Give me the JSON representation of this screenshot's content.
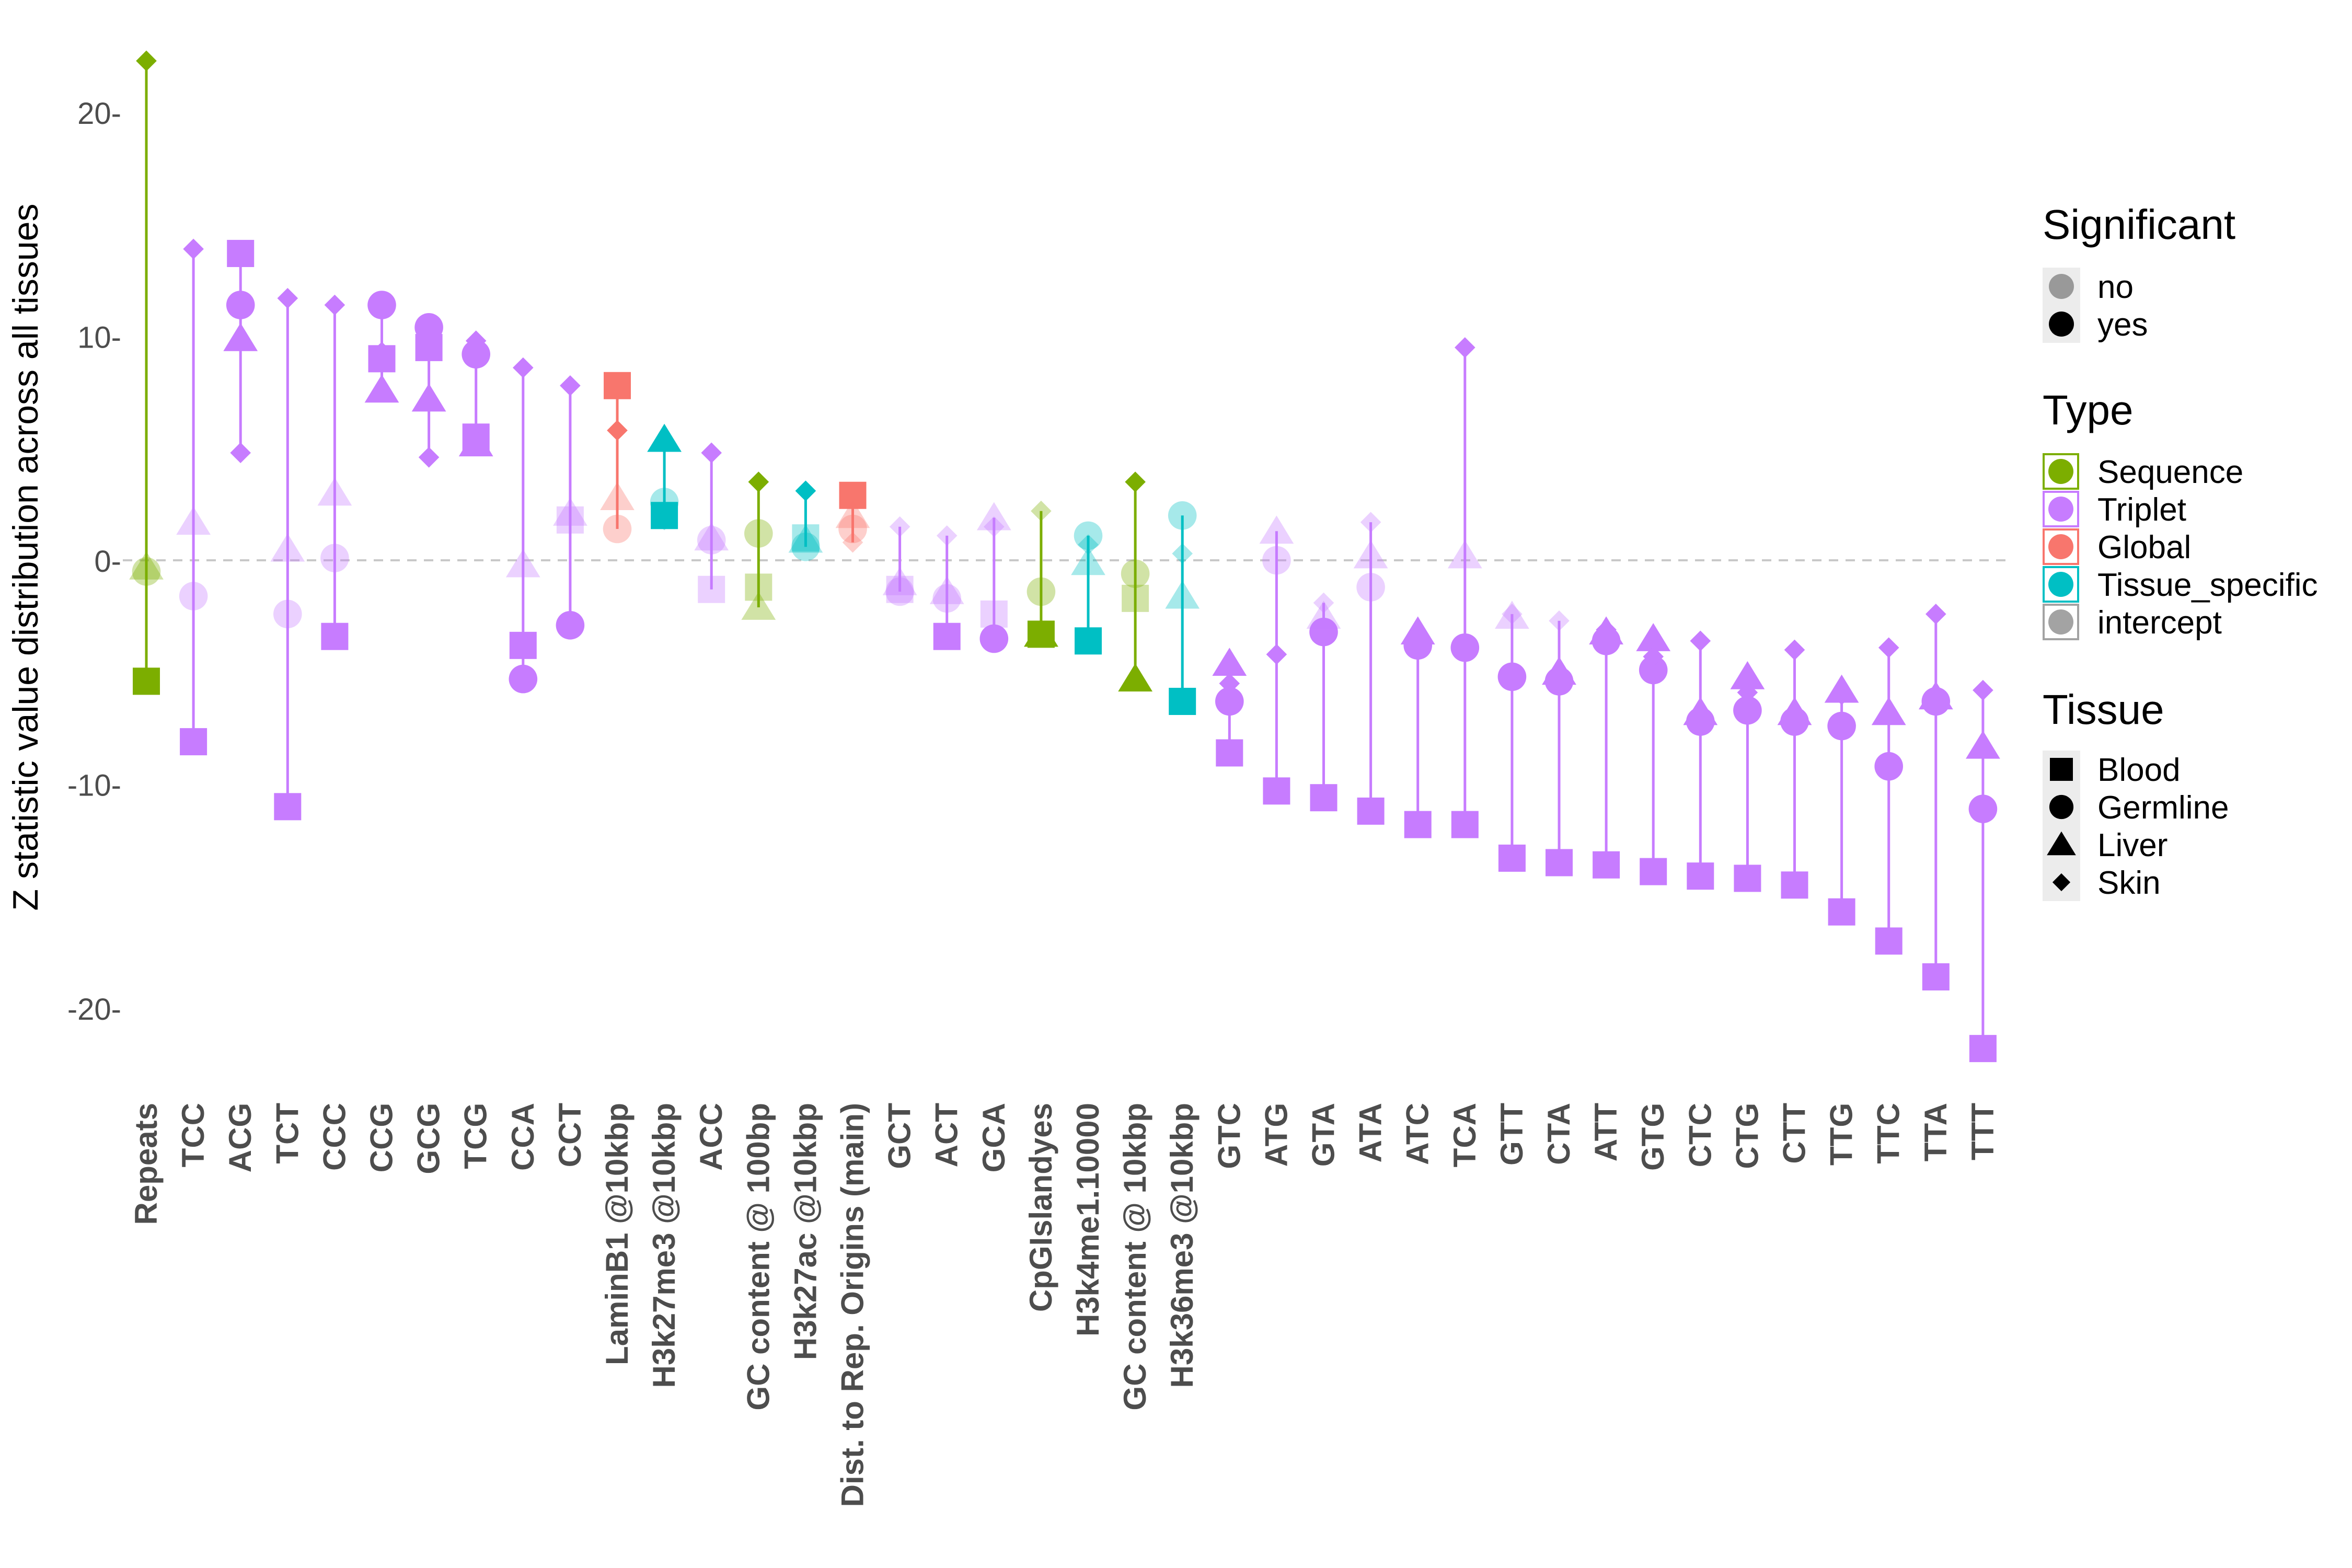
{
  "chart_data": {
    "type": "scatter",
    "title": "",
    "xlabel": "",
    "ylabel": "Z statistic value distribution across all tissues",
    "ylim": [
      -24,
      24
    ],
    "yticks": [
      20,
      10,
      0,
      -10,
      -20
    ],
    "ytick_labels": [
      "20-",
      "10-",
      "0-",
      "-10-",
      "-20-"
    ],
    "reference_line": 0,
    "grid": false,
    "legend_position": "right",
    "categories": [
      "Repeats",
      "TCC",
      "ACG",
      "TCT",
      "CCC",
      "CCG",
      "GCG",
      "TCG",
      "CCA",
      "CCT",
      "LaminB1 @10kbp",
      "H3k27me3 @10kbp",
      "ACC",
      "GC content @ 100bp",
      "H3k27ac @10kbp",
      "Dist. to Rep. Origins (main)",
      "GCT",
      "ACT",
      "GCA",
      "CpGIslandyes",
      "H3k4me1.10000",
      "GC content @ 10kbp",
      "H3k36me3 @10kbp",
      "GTC",
      "ATG",
      "GTA",
      "ATA",
      "ATC",
      "TCA",
      "GTT",
      "CTA",
      "ATT",
      "GTG",
      "CTC",
      "CTG",
      "CTT",
      "TTG",
      "TTC",
      "TTA",
      "TTT"
    ],
    "category_type": [
      "Sequence",
      "Triplet",
      "Triplet",
      "Triplet",
      "Triplet",
      "Triplet",
      "Triplet",
      "Triplet",
      "Triplet",
      "Triplet",
      "Global",
      "Tissue_specific",
      "Triplet",
      "Sequence",
      "Tissue_specific",
      "Global",
      "Triplet",
      "Triplet",
      "Triplet",
      "Sequence",
      "Tissue_specific",
      "Sequence",
      "Tissue_specific",
      "Triplet",
      "Triplet",
      "Triplet",
      "Triplet",
      "Triplet",
      "Triplet",
      "Triplet",
      "Triplet",
      "Triplet",
      "Triplet",
      "Triplet",
      "Triplet",
      "Triplet",
      "Triplet",
      "Triplet",
      "Triplet",
      "Triplet"
    ],
    "tissues": [
      "Blood",
      "Germline",
      "Liver",
      "Skin"
    ],
    "series": [
      {
        "name": "Blood",
        "values": [
          -5.4,
          -8.1,
          13.7,
          -11.0,
          -3.4,
          9.0,
          9.5,
          5.5,
          -3.8,
          1.8,
          7.8,
          2.0,
          -1.3,
          -1.2,
          1.0,
          2.9,
          -1.3,
          -3.4,
          -2.4,
          -3.3,
          -3.6,
          -1.7,
          -6.3,
          -8.6,
          -10.3,
          -10.6,
          -11.2,
          -11.8,
          -11.8,
          -13.3,
          -13.5,
          -13.6,
          -13.9,
          -14.1,
          -14.2,
          -14.5,
          -15.7,
          -17.0,
          -18.6,
          -21.8
        ],
        "significant": [
          true,
          true,
          true,
          true,
          true,
          true,
          true,
          true,
          true,
          false,
          true,
          true,
          false,
          false,
          false,
          true,
          false,
          true,
          false,
          true,
          true,
          false,
          true,
          true,
          true,
          true,
          true,
          true,
          true,
          true,
          true,
          true,
          true,
          true,
          true,
          true,
          true,
          true,
          true,
          true
        ]
      },
      {
        "name": "Germline",
        "values": [
          -0.5,
          -1.6,
          11.4,
          -2.4,
          0.1,
          11.4,
          10.4,
          9.2,
          -5.3,
          -2.9,
          1.4,
          2.6,
          0.9,
          1.2,
          0.6,
          1.4,
          -1.4,
          -1.7,
          -3.5,
          -1.4,
          1.1,
          -0.6,
          2.0,
          -6.3,
          0.0,
          -3.2,
          -1.2,
          -3.8,
          -3.9,
          -5.2,
          -5.4,
          -3.6,
          -4.9,
          -7.2,
          -6.7,
          -7.2,
          -7.4,
          -9.2,
          -6.3,
          -11.1
        ],
        "significant": [
          false,
          false,
          true,
          false,
          false,
          true,
          true,
          true,
          true,
          true,
          false,
          false,
          false,
          false,
          false,
          false,
          false,
          false,
          true,
          false,
          false,
          false,
          false,
          true,
          false,
          true,
          false,
          true,
          true,
          true,
          true,
          true,
          true,
          true,
          true,
          true,
          true,
          true,
          true,
          true
        ]
      },
      {
        "name": "Liver",
        "values": [
          -0.3,
          1.7,
          9.9,
          0.5,
          3.0,
          7.6,
          7.2,
          5.2,
          -0.2,
          2.1,
          2.8,
          5.4,
          1.0,
          -2.1,
          0.9,
          2.0,
          -1.0,
          -1.4,
          1.9,
          -3.3,
          -0.1,
          -5.3,
          -1.6,
          -4.6,
          1.3,
          -2.5,
          0.2,
          -3.2,
          0.2,
          -2.5,
          -5.0,
          -3.2,
          -3.5,
          -6.8,
          -5.2,
          -6.8,
          -5.8,
          -6.8,
          -6.1,
          -8.3
        ],
        "significant": [
          false,
          false,
          true,
          false,
          false,
          true,
          true,
          true,
          false,
          false,
          false,
          true,
          false,
          false,
          false,
          false,
          false,
          false,
          false,
          true,
          false,
          true,
          false,
          true,
          false,
          false,
          false,
          true,
          false,
          false,
          true,
          true,
          true,
          true,
          true,
          true,
          true,
          true,
          true,
          true
        ]
      },
      {
        "name": "Skin",
        "values": [
          22.3,
          13.9,
          4.8,
          11.7,
          11.4,
          9.3,
          4.6,
          9.8,
          8.6,
          7.8,
          5.8,
          1.8,
          4.8,
          3.5,
          3.1,
          0.8,
          1.5,
          1.1,
          1.5,
          2.2,
          0.7,
          3.5,
          0.3,
          -5.5,
          -4.2,
          -1.9,
          1.7,
          -3.4,
          9.5,
          -2.4,
          -2.7,
          -3.1,
          -4.3,
          -3.6,
          -5.9,
          -4.0,
          -6.0,
          -3.9,
          -2.4,
          -5.8
        ],
        "significant": [
          true,
          true,
          true,
          true,
          true,
          true,
          true,
          true,
          true,
          true,
          true,
          false,
          true,
          true,
          true,
          false,
          false,
          false,
          false,
          false,
          false,
          true,
          false,
          true,
          true,
          false,
          false,
          true,
          true,
          false,
          false,
          true,
          true,
          true,
          true,
          true,
          true,
          true,
          true,
          true
        ]
      }
    ],
    "legend": {
      "significant": {
        "title": "Significant",
        "entries": [
          "no",
          "yes"
        ]
      },
      "type": {
        "title": "Type",
        "entries": [
          "Sequence",
          "Triplet",
          "Global",
          "Tissue_specific",
          "intercept"
        ]
      },
      "tissue": {
        "title": "Tissue",
        "entries": [
          "Blood",
          "Germline",
          "Liver",
          "Skin"
        ]
      }
    },
    "type_colors": {
      "Sequence": "#7CAE00",
      "Triplet": "#C77CFF",
      "Global": "#F8766D",
      "Tissue_specific": "#00BFC4",
      "intercept": "#A3A3A3"
    }
  }
}
